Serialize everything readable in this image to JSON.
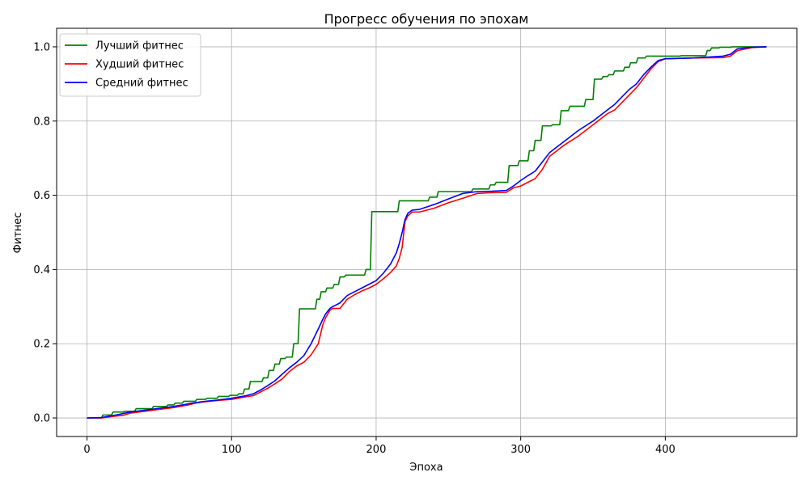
{
  "chart_data": {
    "type": "line",
    "title": "Прогресс обучения по эпохам",
    "xlabel": "Эпоха",
    "ylabel": "Фитнес",
    "xlim": [
      -21,
      491
    ],
    "ylim": [
      -0.05,
      1.05
    ],
    "x_ticks": [
      0,
      100,
      200,
      300,
      400
    ],
    "y_ticks": [
      0.0,
      0.2,
      0.4,
      0.6,
      0.8,
      1.0
    ],
    "x_tick_labels": [
      "0",
      "100",
      "200",
      "300",
      "400"
    ],
    "y_tick_labels": [
      "0.0",
      "0.2",
      "0.4",
      "0.6",
      "0.8",
      "1.0"
    ],
    "grid": true,
    "legend_position": "top-left",
    "series": [
      {
        "name": "Лучший фитнес",
        "color": "#008000",
        "x": [
          0,
          10,
          11,
          17,
          18,
          25,
          26,
          33,
          34,
          45,
          46,
          55,
          56,
          60,
          61,
          66,
          67,
          75,
          76,
          82,
          83,
          90,
          91,
          98,
          99,
          104,
          105,
          108,
          109,
          112,
          113,
          121,
          122,
          125,
          126,
          129,
          130,
          133,
          134,
          137,
          138,
          142,
          143,
          146,
          147,
          158,
          159,
          161,
          162,
          165,
          166,
          170,
          171,
          174,
          175,
          178,
          179,
          192,
          193,
          196,
          197,
          215,
          216,
          236,
          237,
          242,
          243,
          266,
          267,
          278,
          279,
          282,
          283,
          291,
          292,
          298,
          299,
          305,
          306,
          309,
          310,
          314,
          315,
          321,
          322,
          327,
          328,
          333,
          334,
          344,
          345,
          350,
          351,
          356,
          357,
          360,
          361,
          364,
          365,
          371,
          372,
          375,
          376,
          380,
          381,
          386,
          387,
          391,
          392,
          410,
          411,
          428,
          429,
          431,
          432,
          437,
          438,
          445,
          446,
          470
        ],
        "values": [
          0.0,
          0.0,
          0.008,
          0.008,
          0.016,
          0.016,
          0.018,
          0.018,
          0.025,
          0.025,
          0.031,
          0.031,
          0.035,
          0.035,
          0.04,
          0.04,
          0.045,
          0.045,
          0.05,
          0.05,
          0.053,
          0.053,
          0.058,
          0.058,
          0.061,
          0.061,
          0.065,
          0.065,
          0.078,
          0.078,
          0.098,
          0.098,
          0.108,
          0.108,
          0.128,
          0.128,
          0.145,
          0.145,
          0.16,
          0.16,
          0.164,
          0.164,
          0.2,
          0.2,
          0.294,
          0.294,
          0.32,
          0.32,
          0.34,
          0.34,
          0.35,
          0.35,
          0.36,
          0.36,
          0.38,
          0.38,
          0.385,
          0.385,
          0.4,
          0.4,
          0.556,
          0.556,
          0.585,
          0.585,
          0.595,
          0.595,
          0.61,
          0.61,
          0.617,
          0.617,
          0.628,
          0.628,
          0.635,
          0.635,
          0.68,
          0.68,
          0.693,
          0.693,
          0.72,
          0.72,
          0.748,
          0.748,
          0.787,
          0.787,
          0.79,
          0.79,
          0.828,
          0.828,
          0.84,
          0.84,
          0.858,
          0.858,
          0.913,
          0.913,
          0.92,
          0.92,
          0.925,
          0.925,
          0.935,
          0.935,
          0.945,
          0.945,
          0.957,
          0.957,
          0.97,
          0.97,
          0.975,
          0.975,
          0.975,
          0.975,
          0.976,
          0.976,
          0.99,
          0.99,
          0.997,
          0.997,
          0.999,
          0.999,
          1.0,
          1.0
        ]
      },
      {
        "name": "Худший фитнес",
        "color": "#ff0000",
        "x": [
          0,
          10,
          20,
          25,
          30,
          40,
          50,
          60,
          70,
          75,
          80,
          90,
          100,
          110,
          115,
          120,
          125,
          130,
          135,
          140,
          145,
          150,
          155,
          160,
          163,
          165,
          168,
          170,
          175,
          180,
          185,
          190,
          195,
          200,
          205,
          210,
          214,
          216,
          218,
          220,
          222,
          225,
          230,
          240,
          250,
          260,
          270,
          280,
          290,
          295,
          300,
          305,
          310,
          315,
          320,
          325,
          330,
          340,
          350,
          355,
          360,
          365,
          370,
          375,
          380,
          385,
          390,
          395,
          400,
          420,
          440,
          445,
          450,
          460,
          470
        ],
        "values": [
          0.0,
          0.0,
          0.005,
          0.007,
          0.013,
          0.018,
          0.023,
          0.028,
          0.035,
          0.04,
          0.043,
          0.047,
          0.05,
          0.057,
          0.06,
          0.07,
          0.08,
          0.092,
          0.105,
          0.125,
          0.14,
          0.15,
          0.17,
          0.2,
          0.25,
          0.27,
          0.29,
          0.295,
          0.295,
          0.32,
          0.332,
          0.342,
          0.35,
          0.36,
          0.375,
          0.392,
          0.41,
          0.43,
          0.46,
          0.53,
          0.545,
          0.555,
          0.555,
          0.565,
          0.58,
          0.592,
          0.605,
          0.607,
          0.608,
          0.62,
          0.625,
          0.635,
          0.645,
          0.67,
          0.705,
          0.72,
          0.735,
          0.76,
          0.79,
          0.805,
          0.82,
          0.83,
          0.85,
          0.87,
          0.89,
          0.915,
          0.94,
          0.96,
          0.968,
          0.97,
          0.971,
          0.975,
          0.99,
          0.998,
          1.0
        ]
      },
      {
        "name": "Средний фитнес",
        "color": "#0000ff",
        "x": [
          0,
          10,
          20,
          25,
          30,
          40,
          50,
          60,
          70,
          75,
          80,
          90,
          100,
          110,
          115,
          120,
          125,
          130,
          135,
          140,
          145,
          150,
          155,
          160,
          163,
          165,
          168,
          170,
          175,
          180,
          185,
          190,
          195,
          200,
          205,
          210,
          214,
          216,
          218,
          220,
          222,
          225,
          230,
          240,
          250,
          260,
          270,
          280,
          290,
          295,
          300,
          305,
          310,
          315,
          320,
          325,
          330,
          340,
          350,
          355,
          360,
          365,
          370,
          375,
          380,
          385,
          390,
          395,
          400,
          420,
          440,
          445,
          450,
          460,
          470
        ],
        "values": [
          0.0,
          0.001,
          0.008,
          0.012,
          0.016,
          0.021,
          0.026,
          0.031,
          0.038,
          0.041,
          0.044,
          0.048,
          0.053,
          0.06,
          0.065,
          0.075,
          0.087,
          0.1,
          0.118,
          0.135,
          0.15,
          0.168,
          0.2,
          0.24,
          0.265,
          0.28,
          0.295,
          0.3,
          0.31,
          0.33,
          0.34,
          0.35,
          0.36,
          0.37,
          0.39,
          0.415,
          0.445,
          0.47,
          0.5,
          0.535,
          0.552,
          0.56,
          0.562,
          0.575,
          0.59,
          0.605,
          0.61,
          0.611,
          0.613,
          0.625,
          0.64,
          0.653,
          0.665,
          0.69,
          0.715,
          0.73,
          0.745,
          0.775,
          0.8,
          0.815,
          0.83,
          0.845,
          0.865,
          0.885,
          0.9,
          0.925,
          0.945,
          0.963,
          0.968,
          0.97,
          0.975,
          0.98,
          0.995,
          0.999,
          1.0
        ]
      }
    ]
  }
}
